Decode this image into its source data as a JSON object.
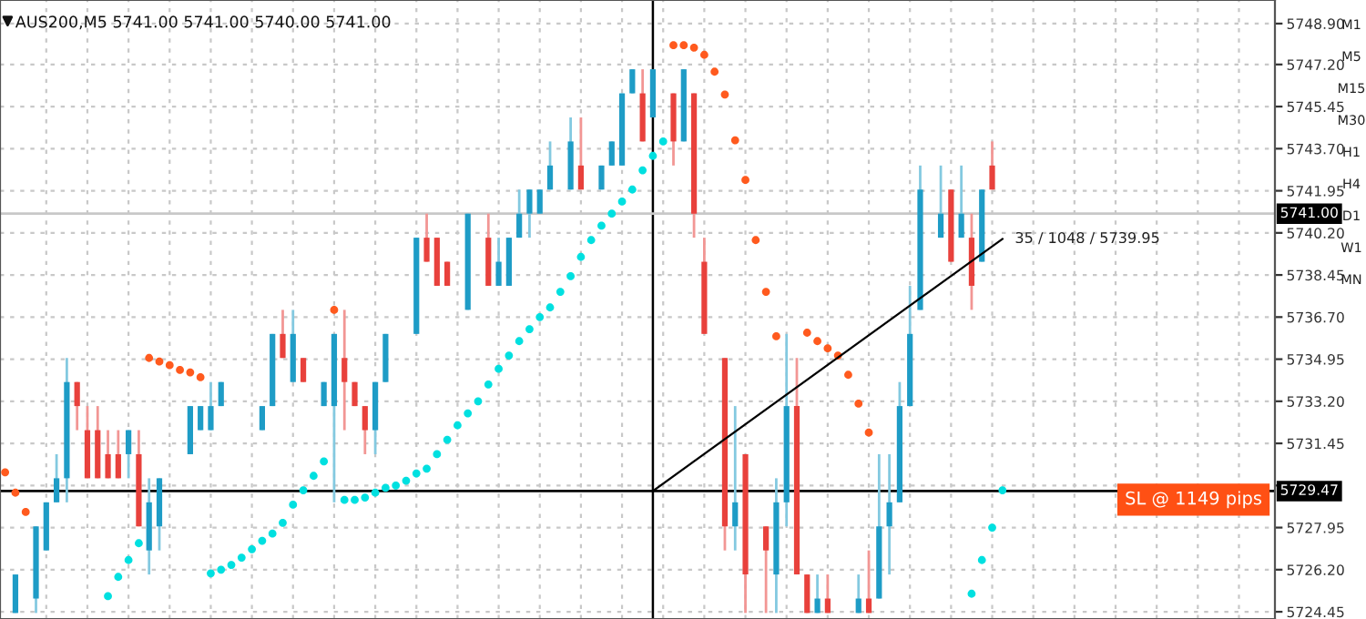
{
  "chart_data": {
    "type": "candlestick",
    "title": "AUS200,M5 5741.00 5741.00 5740.00 5741.00",
    "categories": [
      null,
      null,
      null,
      null,
      null,
      null,
      null,
      null,
      null,
      null,
      null,
      null,
      null,
      null,
      null,
      null,
      null,
      null,
      null,
      null,
      null,
      null,
      null,
      null,
      null,
      null,
      null,
      null,
      null,
      null,
      null,
      null,
      null,
      null,
      null,
      null,
      null,
      null,
      null,
      null,
      null,
      null,
      null,
      null,
      null,
      null,
      null,
      null,
      null,
      null,
      null,
      null,
      null,
      null,
      null,
      null,
      null,
      null,
      null,
      null,
      null,
      null,
      null,
      null,
      null,
      null,
      null,
      null,
      null,
      null,
      null,
      null,
      null,
      null,
      null,
      null,
      null,
      null,
      null,
      null,
      null,
      null,
      null,
      null,
      null,
      null,
      null,
      null,
      null,
      null,
      null,
      null,
      null,
      null,
      null,
      null,
      null,
      null,
      null,
      null,
      null,
      null,
      null,
      null,
      null,
      null,
      null,
      null,
      null,
      null,
      null,
      null,
      null,
      null,
      null,
      null,
      null,
      null,
      null,
      null,
      null,
      null,
      null,
      null
    ],
    "ohlc": [
      null,
      [
        5724.4,
        5726,
        5724.4,
        5726
      ],
      null,
      [
        5725,
        5728,
        5724.4,
        5728
      ],
      [
        5727,
        5729,
        5727,
        5729
      ],
      [
        5729,
        5731,
        5729,
        5730
      ],
      [
        5730,
        5735,
        5729,
        5734
      ],
      [
        5734,
        5734,
        5732,
        5733
      ],
      [
        5732,
        5733,
        5730,
        5730
      ],
      [
        5732,
        5733,
        5730,
        5730
      ],
      [
        5731,
        5732,
        5730,
        5730
      ],
      [
        5731,
        5732,
        5730,
        5730
      ],
      [
        5731,
        5732,
        5730,
        5732
      ],
      [
        5731,
        5732,
        5728,
        5728
      ],
      [
        5727,
        5730,
        5726,
        5729
      ],
      [
        5728,
        5730,
        5727,
        5730
      ],
      null,
      null,
      [
        5731,
        5733,
        5731,
        5733
      ],
      [
        5732,
        5733,
        5732,
        5733
      ],
      [
        5732,
        5734,
        5732,
        5733
      ],
      [
        5733,
        5734,
        5733,
        5734
      ],
      null,
      null,
      null,
      [
        5732,
        5733,
        5732,
        5733
      ],
      [
        5733,
        5736,
        5733,
        5736
      ],
      [
        5736,
        5737,
        5735,
        5735
      ],
      [
        5734,
        5737,
        5734,
        5736
      ],
      [
        5735,
        5735,
        5734,
        5734
      ],
      null,
      [
        5733,
        5734,
        5733,
        5734
      ],
      [
        5733,
        5736,
        5729,
        5736
      ],
      [
        5735,
        5737,
        5732,
        5734
      ],
      [
        5734,
        5734,
        5733,
        5733
      ],
      [
        5733,
        5733,
        5731,
        5732
      ],
      [
        5732,
        5734,
        5731,
        5734
      ],
      [
        5734,
        5736,
        5734,
        5736
      ],
      null,
      null,
      [
        5736,
        5740,
        5736,
        5740
      ],
      [
        5740,
        5741,
        5739,
        5739
      ],
      [
        5740,
        5740,
        5738,
        5738
      ],
      [
        5739,
        5739,
        5738,
        5738
      ],
      null,
      [
        5737,
        5741,
        5737,
        5741
      ],
      null,
      [
        5740,
        5741,
        5738,
        5738
      ],
      [
        5738,
        5740,
        5738,
        5739
      ],
      [
        5738,
        5740,
        5738,
        5740
      ],
      [
        5740,
        5742,
        5740,
        5741
      ],
      [
        5741,
        5742,
        5740,
        5742
      ],
      [
        5741,
        5742,
        5741,
        5742
      ],
      [
        5742,
        5744,
        5742,
        5743
      ],
      null,
      [
        5742,
        5745,
        5742,
        5744
      ],
      [
        5743,
        5745,
        5742,
        5742
      ],
      null,
      [
        5742,
        5743,
        5742,
        5743
      ],
      [
        5743,
        5744,
        5743,
        5744
      ],
      [
        5743,
        5746,
        5743,
        5746
      ],
      [
        5746,
        5747,
        5746,
        5747
      ],
      [
        5746,
        5747,
        5744,
        5744
      ],
      [
        5745,
        5747,
        5745,
        5747
      ],
      null,
      [
        5746,
        5746,
        5743,
        5744
      ],
      [
        5744,
        5747,
        5744,
        5747
      ],
      [
        5746,
        5746,
        5740,
        5741
      ],
      [
        5739,
        5740,
        5736,
        5736
      ],
      null,
      [
        5735,
        5735,
        5727,
        5728
      ],
      [
        5728,
        5733,
        5727,
        5729
      ],
      [
        5731,
        5731,
        5724.4,
        5726
      ],
      null,
      [
        5728,
        5728,
        5724.4,
        5727
      ],
      [
        5726,
        5730,
        5724.4,
        5729
      ],
      [
        5729,
        5736,
        5728,
        5733
      ],
      [
        5733,
        5735,
        5726,
        5726
      ],
      [
        5726,
        5726,
        5724.4,
        5724.4
      ],
      [
        5724.4,
        5726,
        5724.4,
        5725
      ],
      [
        5725,
        5726,
        5724.4,
        5724.4
      ],
      null,
      null,
      [
        5724.4,
        5726,
        5724.4,
        5725
      ],
      [
        5725,
        5727,
        5724.4,
        5724.4
      ],
      [
        5725,
        5731,
        5725,
        5728
      ],
      [
        5728,
        5731,
        5726,
        5729
      ],
      [
        5729,
        5734,
        5729,
        5733
      ],
      [
        5733,
        5738,
        5733,
        5736
      ],
      [
        5737,
        5743,
        5737,
        5742
      ],
      null,
      [
        5740,
        5743,
        5740,
        5741
      ],
      [
        5742,
        5742,
        5739,
        5739
      ],
      [
        5740,
        5743,
        5740,
        5741
      ],
      [
        5740,
        5741,
        5737,
        5738
      ],
      [
        5739,
        5742,
        5739,
        5742
      ],
      [
        5743,
        5744,
        5742,
        5742
      ],
      null,
      null,
      null,
      null,
      null,
      null,
      null,
      null,
      null,
      null,
      null,
      null,
      null,
      null,
      null,
      null,
      null,
      null,
      null,
      null,
      null,
      null,
      null,
      null,
      null,
      null,
      null
    ],
    "colors": [
      null,
      "#1e9cc6",
      null,
      "#1e9cc6",
      "#1e9cc6",
      "#1e9cc6",
      "#1e9cc6",
      "#e8413c",
      "#e8413c",
      "#e8413c",
      "#e8413c",
      "#e8413c",
      "#1e9cc6",
      "#e8413c",
      "#1e9cc6",
      "#1e9cc6",
      null,
      null,
      "#1e9cc6",
      "#1e9cc6",
      "#1e9cc6",
      "#1e9cc6",
      null,
      null,
      null,
      "#1e9cc6",
      "#1e9cc6",
      "#e8413c",
      "#1e9cc6",
      "#e8413c",
      null,
      "#1e9cc6",
      "#1e9cc6",
      "#e8413c",
      "#e8413c",
      "#e8413c",
      "#1e9cc6",
      "#1e9cc6",
      null,
      null,
      "#1e9cc6",
      "#e8413c",
      "#e8413c",
      "#e8413c",
      null,
      "#1e9cc6",
      null,
      "#e8413c",
      "#1e9cc6",
      "#1e9cc6",
      "#1e9cc6",
      "#1e9cc6",
      "#1e9cc6",
      "#1e9cc6",
      null,
      "#1e9cc6",
      "#e8413c",
      null,
      "#1e9cc6",
      "#1e9cc6",
      "#1e9cc6",
      "#1e9cc6",
      "#e8413c",
      "#1e9cc6",
      null,
      "#e8413c",
      "#1e9cc6",
      "#e8413c",
      "#e8413c",
      null,
      "#e8413c",
      "#1e9cc6",
      "#e8413c",
      null,
      "#e8413c",
      "#1e9cc6",
      "#1e9cc6",
      "#e8413c",
      "#e8413c",
      "#1e9cc6",
      "#e8413c",
      null,
      null,
      "#1e9cc6",
      "#e8413c",
      "#1e9cc6",
      "#1e9cc6",
      "#1e9cc6",
      "#1e9cc6",
      "#1e9cc6",
      null,
      "#1e9cc6",
      "#e8413c",
      "#1e9cc6",
      "#e8413c",
      "#1e9cc6",
      "#e8413c",
      null,
      null,
      null,
      null,
      null,
      null,
      null,
      null,
      null,
      null,
      null,
      null,
      null,
      null,
      null,
      null,
      null,
      null,
      null,
      null,
      null,
      null,
      null,
      null,
      null,
      null,
      null
    ],
    "series": [
      {
        "type": "scatter",
        "color": "#ff5a1e",
        "marker": "circle",
        "values": [
          5730.25,
          5729.4,
          5728.6,
          null,
          null,
          null,
          null,
          null,
          null,
          null,
          null,
          null,
          null,
          null,
          5735.0,
          5734.85,
          5734.7,
          5734.5,
          5734.4,
          5734.2,
          null,
          null,
          null,
          null,
          null,
          null,
          null,
          null,
          null,
          null,
          null,
          null,
          5737.0,
          null,
          null,
          null,
          null,
          null,
          null,
          null,
          null,
          null,
          null,
          null,
          null,
          null,
          null,
          null,
          null,
          null,
          null,
          null,
          null,
          null,
          null,
          null,
          null,
          null,
          null,
          null,
          null,
          null,
          null,
          null,
          null,
          5748.0,
          5748.0,
          5747.9,
          5747.6,
          5746.9,
          5745.95,
          5744.05,
          5742.4,
          5739.9,
          5737.75,
          5735.9,
          null,
          null,
          5736.05,
          5735.7,
          5735.4,
          5735.1,
          5734.3,
          5733.1,
          5731.9,
          null,
          null,
          null,
          null,
          null,
          null,
          null,
          null,
          null,
          null,
          null,
          null,
          null,
          null,
          null,
          null,
          null,
          null,
          null,
          null,
          null,
          null,
          null,
          null,
          null,
          null,
          null,
          null,
          null,
          null,
          null,
          null,
          null,
          null,
          null,
          null,
          null,
          null,
          null
        ]
      },
      {
        "type": "scatter",
        "color": "#00e0e0",
        "marker": "circle",
        "values": [
          null,
          null,
          null,
          null,
          null,
          null,
          null,
          null,
          null,
          null,
          5725.1,
          5725.9,
          5726.6,
          5727.3,
          null,
          null,
          null,
          null,
          null,
          null,
          5726.05,
          5726.2,
          5726.4,
          5726.7,
          5727.05,
          5727.4,
          5727.7,
          5728.15,
          5728.9,
          5729.5,
          5730.1,
          5730.7,
          null,
          5729.1,
          5729.1,
          5729.2,
          5729.4,
          5729.6,
          5729.7,
          5729.9,
          5730.2,
          5730.4,
          5731.0,
          5731.6,
          5732.2,
          5732.7,
          5733.2,
          5733.9,
          5734.55,
          5735.1,
          5735.7,
          5736.2,
          5736.7,
          5737.1,
          5737.75,
          5738.4,
          5739.2,
          5739.9,
          5740.5,
          5741.0,
          5741.5,
          5742.0,
          5742.8,
          5743.4,
          5744.0,
          null,
          null,
          null,
          null,
          null,
          null,
          null,
          null,
          null,
          null,
          null,
          null,
          null,
          null,
          null,
          null,
          null,
          null,
          null,
          null,
          null,
          null,
          null,
          null,
          null,
          null,
          null,
          null,
          null,
          5725.2,
          5726.6,
          5727.95,
          5729.5,
          null,
          null,
          null,
          null,
          null,
          null,
          null,
          null,
          null,
          null,
          null,
          null,
          null,
          null,
          null,
          null,
          null,
          null,
          null,
          null,
          null,
          null,
          null,
          null,
          null,
          null
        ]
      },
      {
        "type": "line",
        "color": "#000000",
        "values": [
          null,
          null,
          null,
          null,
          null,
          null,
          null,
          null,
          null,
          null,
          null,
          null,
          null,
          null,
          null,
          null,
          null,
          null,
          null,
          null,
          null,
          null,
          null,
          null,
          null,
          null,
          null,
          null,
          null,
          null,
          null,
          null,
          null,
          null,
          null,
          null,
          null,
          null,
          null,
          null,
          null,
          null,
          null,
          null,
          null,
          null,
          null,
          null,
          null,
          null,
          null,
          null,
          null,
          null,
          null,
          null,
          null,
          null,
          null,
          null,
          null,
          null,
          null,
          5729.47,
          null,
          null,
          null,
          null,
          null,
          null,
          null,
          null,
          null,
          null,
          null,
          null,
          null,
          null,
          null,
          null,
          null,
          null,
          null,
          null,
          null,
          null,
          null,
          null,
          null,
          null,
          null,
          null,
          null,
          null,
          null,
          null,
          null,
          5739.95,
          null,
          null,
          null,
          null,
          null,
          null,
          null,
          null,
          null,
          null,
          null,
          null,
          null,
          null,
          null,
          null,
          null,
          null,
          null,
          null,
          null,
          null,
          null,
          null,
          null,
          null
        ]
      }
    ],
    "ylim": [
      5724.15,
      5749.88
    ],
    "yticks": [
      {
        "value": 5748.9,
        "label": "5748.90"
      },
      {
        "value": 5747.2,
        "label": "5747.20"
      },
      {
        "value": 5745.45,
        "label": "5745.45"
      },
      {
        "value": 5743.7,
        "label": "5743.70"
      },
      {
        "value": 5741.95,
        "label": "5741.95"
      },
      {
        "value": 5740.2,
        "label": "5740.20"
      },
      {
        "value": 5738.45,
        "label": "5738.45"
      },
      {
        "value": 5736.7,
        "label": "5736.70"
      },
      {
        "value": 5734.95,
        "label": "5734.95"
      },
      {
        "value": 5733.2,
        "label": "5733.20"
      },
      {
        "value": 5731.45,
        "label": "5731.45"
      },
      {
        "value": 5729.7,
        "label": null
      },
      {
        "value": 5727.95,
        "label": "5727.95"
      },
      {
        "value": 5726.2,
        "label": "5726.20"
      },
      {
        "value": 5724.45,
        "label": "5724.45"
      }
    ],
    "ref_lines": [
      {
        "axis": "y",
        "value": 5741.0,
        "label": "5741.00",
        "color": "#c8c8c8"
      },
      {
        "axis": "y",
        "value": 5729.47,
        "label": "5729.47",
        "color": "#000000"
      }
    ],
    "annotations": [
      "35 / 1048 / 5739.95",
      {
        "text": "SL @ 1149 pips",
        "y": 5729.47
      },
      "M1",
      "M5",
      "M15",
      "M30",
      "H1",
      "H4",
      "D1",
      "W1",
      "MN"
    ],
    "grid": true,
    "tick_labels": "y"
  }
}
